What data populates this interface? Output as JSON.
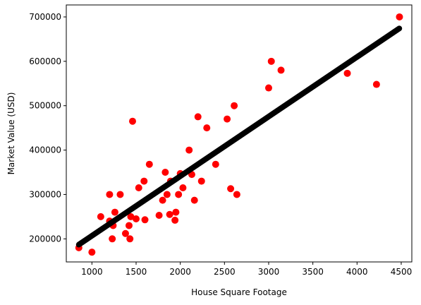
{
  "chart_data": {
    "type": "scatter",
    "title": "",
    "xlabel": "House Square Footage",
    "ylabel": "Market Value (USD)",
    "xlim": [
      710,
      4620
    ],
    "ylim": [
      148000,
      727000
    ],
    "xticks": [
      1000,
      1500,
      2000,
      2500,
      3000,
      3500,
      4000,
      4500
    ],
    "yticks": [
      200000,
      300000,
      400000,
      500000,
      600000,
      700000
    ],
    "grid": false,
    "legend": "none",
    "series": [
      {
        "kind": "scatter",
        "color": "#ff0000",
        "points": [
          [
            852,
            180000
          ],
          [
            1000,
            170000
          ],
          [
            1100,
            250000
          ],
          [
            1200,
            300000
          ],
          [
            1200,
            240000
          ],
          [
            1230,
            200000
          ],
          [
            1240,
            230000
          ],
          [
            1260,
            260000
          ],
          [
            1320,
            300000
          ],
          [
            1380,
            212000
          ],
          [
            1420,
            230000
          ],
          [
            1430,
            200000
          ],
          [
            1440,
            250000
          ],
          [
            1460,
            465000
          ],
          [
            1500,
            245000
          ],
          [
            1530,
            315000
          ],
          [
            1590,
            330000
          ],
          [
            1600,
            243000
          ],
          [
            1650,
            368000
          ],
          [
            1760,
            253000
          ],
          [
            1800,
            287000
          ],
          [
            1830,
            350000
          ],
          [
            1850,
            300000
          ],
          [
            1880,
            255000
          ],
          [
            1890,
            330000
          ],
          [
            1940,
            242000
          ],
          [
            1950,
            260000
          ],
          [
            1980,
            300000
          ],
          [
            2000,
            347000
          ],
          [
            2030,
            315000
          ],
          [
            2100,
            400000
          ],
          [
            2130,
            345000
          ],
          [
            2160,
            287000
          ],
          [
            2200,
            475000
          ],
          [
            2240,
            330000
          ],
          [
            2300,
            450000
          ],
          [
            2400,
            368000
          ],
          [
            2530,
            470000
          ],
          [
            2570,
            313000
          ],
          [
            2610,
            500000
          ],
          [
            2640,
            300000
          ],
          [
            3000,
            540000
          ],
          [
            3030,
            600000
          ],
          [
            3140,
            580000
          ],
          [
            3890,
            573000
          ],
          [
            4220,
            548000
          ],
          [
            4480,
            700000
          ]
        ]
      },
      {
        "kind": "line",
        "color": "#000000",
        "x": [
          852,
          4478
        ],
        "y": [
          187000,
          674000
        ]
      }
    ]
  }
}
